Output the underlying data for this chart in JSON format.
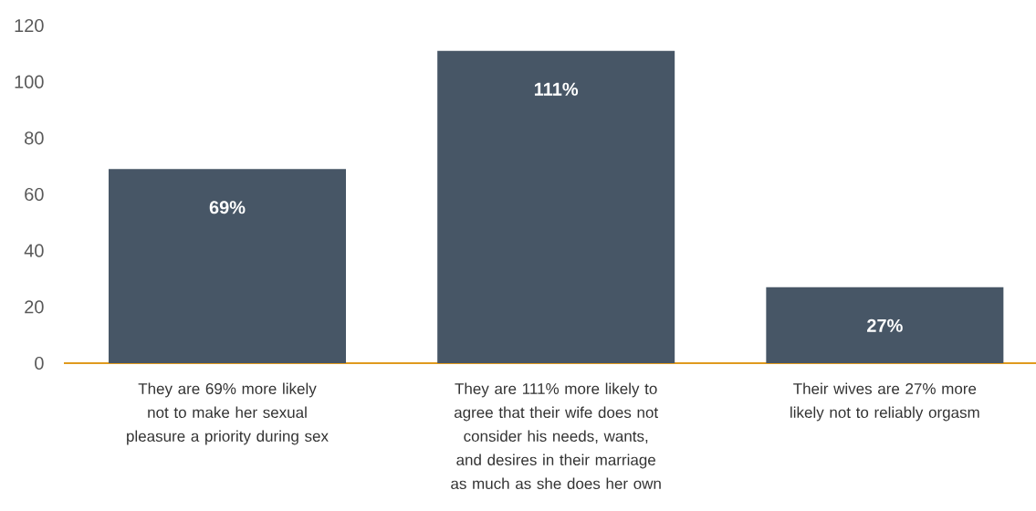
{
  "chart_data": {
    "type": "bar",
    "categories": [
      "They are 69% more likely not to make her sexual pleasure a priority during sex",
      "They are 111% more likely to agree that their wife does not consider his needs, wants, and desires in their marriage as much as she does her own",
      "Their wives are 27% more likely not to reliably orgasm"
    ],
    "values": [
      69,
      111,
      27
    ],
    "value_labels": [
      "69%",
      "111%",
      "27%"
    ],
    "color": "#475666",
    "ylim": [
      0,
      120
    ],
    "yticks": [
      0,
      20,
      40,
      60,
      80,
      100,
      120
    ]
  }
}
